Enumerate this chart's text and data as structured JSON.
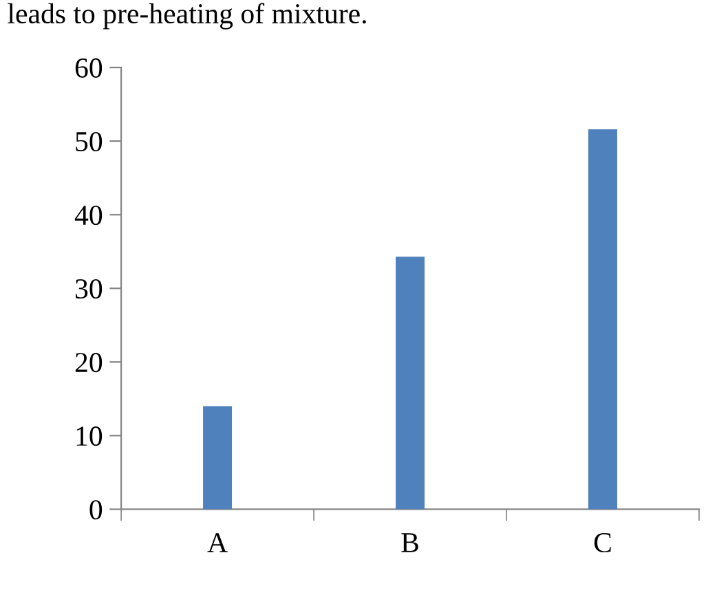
{
  "chart_data": {
    "type": "bar",
    "annotations": [
      "leads to pre-heating of mixture."
    ],
    "categories": [
      "A",
      "B",
      "C"
    ],
    "values": [
      14,
      34.3,
      51.6
    ],
    "color": "#4f81bd",
    "ylim": [
      0,
      60
    ],
    "yticks": [
      0,
      10,
      20,
      30,
      40,
      50,
      60
    ],
    "grid": false,
    "legend": false
  }
}
